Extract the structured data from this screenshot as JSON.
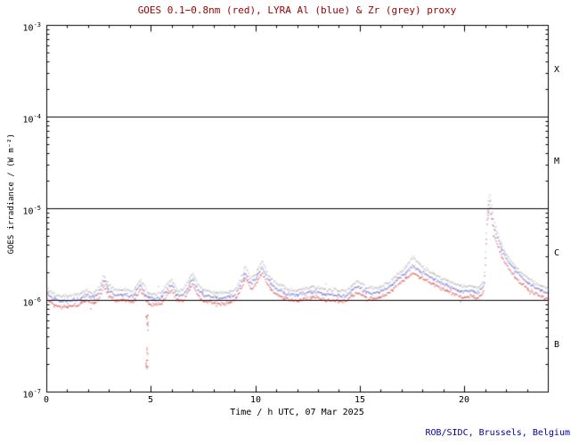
{
  "credit": "ROB/SIDC, Brussels, Belgium",
  "colors": {
    "title": "#990000",
    "credit": "#000099",
    "axis": "#000000"
  },
  "chart_data": {
    "type": "scatter",
    "title": "GOES 0.1−0.8nm (red), LYRA Al (blue) & Zr (grey) proxy",
    "xlabel": "Time / h UTC, 07 Mar 2025",
    "ylabel": "GOES irradiance / (W m⁻²)",
    "y_scale": "log",
    "x_range": [
      0,
      24
    ],
    "y_range_log10": [
      -7,
      -3
    ],
    "x_minor_step": 1,
    "x_ticks": [
      0,
      5,
      10,
      15,
      20
    ],
    "x_tick_labels": [
      "0",
      "5",
      "10",
      "15",
      "20"
    ],
    "y_ticks": [
      {
        "base": "10",
        "exp": "-3"
      },
      {
        "base": "10",
        "exp": "-4"
      },
      {
        "base": "10",
        "exp": "-5"
      },
      {
        "base": "10",
        "exp": "-6"
      },
      {
        "base": "10",
        "exp": "-7"
      }
    ],
    "class_lines_flux": [
      0.0001,
      1e-05,
      1e-06
    ],
    "annotations": [
      {
        "label": "X"
      },
      {
        "label": "M"
      },
      {
        "label": "C"
      },
      {
        "label": "B"
      }
    ],
    "x_keypoints": [
      0,
      0.3,
      0.7,
      1.2,
      1.6,
      1.9,
      2.2,
      2.5,
      2.7,
      2.95,
      3.3,
      3.7,
      4.1,
      4.45,
      4.6,
      4.8,
      5.1,
      5.5,
      5.8,
      5.95,
      6.2,
      6.5,
      6.85,
      7.0,
      7.2,
      7.5,
      8.0,
      8.5,
      9.0,
      9.3,
      9.5,
      9.75,
      10.0,
      10.3,
      10.55,
      10.9,
      11.4,
      11.9,
      12.4,
      12.8,
      13.3,
      13.8,
      14.3,
      14.8,
      15.0,
      15.3,
      15.8,
      16.3,
      16.8,
      17.2,
      17.5,
      17.9,
      18.4,
      18.9,
      19.4,
      19.9,
      20.3,
      20.6,
      20.9,
      21.05,
      21.2,
      21.4,
      21.7,
      22.1,
      22.6,
      23.1,
      23.6,
      24.0
    ],
    "series": [
      {
        "name": "GOES 0.1-0.8nm",
        "color": "#cc0000",
        "values": [
          1.05e-06,
          9e-07,
          8.5e-07,
          8.8e-07,
          9.2e-07,
          1e-06,
          9.3e-07,
          1.05e-06,
          1.45e-06,
          1.15e-06,
          1e-06,
          1.02e-06,
          9.5e-07,
          1.3e-06,
          1.15e-06,
          9.5e-07,
          9e-07,
          9.5e-07,
          1.2e-06,
          1.3e-06,
          1e-06,
          1e-06,
          1.4e-06,
          1.5e-06,
          1.15e-06,
          1e-06,
          9.5e-07,
          9.3e-07,
          1e-06,
          1.4e-06,
          1.8e-06,
          1.35e-06,
          1.55e-06,
          2.05e-06,
          1.5e-06,
          1.2e-06,
          1.05e-06,
          1e-06,
          1.05e-06,
          1.1e-06,
          1.02e-06,
          1e-06,
          9.8e-07,
          1.25e-06,
          1.2e-06,
          1.05e-06,
          1.05e-06,
          1.2e-06,
          1.5e-06,
          1.8e-06,
          2e-06,
          1.8e-06,
          1.55e-06,
          1.35e-06,
          1.2e-06,
          1.1e-06,
          1.12e-06,
          1.05e-06,
          1.25e-06,
          7.5e-06,
          1e-05,
          5e-06,
          3.2e-06,
          2.2e-06,
          1.6e-06,
          1.3e-06,
          1.12e-06,
          1.05e-06
        ]
      },
      {
        "name": "LYRA Al proxy",
        "color": "#3333bb",
        "values": [
          1.21e-06,
          1.04e-06,
          9.8e-07,
          1.01e-06,
          1.06e-06,
          1.15e-06,
          1.07e-06,
          1.21e-06,
          1.67e-06,
          1.32e-06,
          1.15e-06,
          1.17e-06,
          1.09e-06,
          1.5e-06,
          1.32e-06,
          1.09e-06,
          1.04e-06,
          1.09e-06,
          1.38e-06,
          1.5e-06,
          1.15e-06,
          1.15e-06,
          1.61e-06,
          1.73e-06,
          1.32e-06,
          1.15e-06,
          1.09e-06,
          1.07e-06,
          1.15e-06,
          1.61e-06,
          2.07e-06,
          1.55e-06,
          1.78e-06,
          2.36e-06,
          1.73e-06,
          1.38e-06,
          1.21e-06,
          1.15e-06,
          1.21e-06,
          1.27e-06,
          1.17e-06,
          1.15e-06,
          1.13e-06,
          1.44e-06,
          1.38e-06,
          1.21e-06,
          1.21e-06,
          1.38e-06,
          1.73e-06,
          2.07e-06,
          2.4e-06,
          2.07e-06,
          1.78e-06,
          1.55e-06,
          1.38e-06,
          1.27e-06,
          1.29e-06,
          1.21e-06,
          1.44e-06,
          8.6e-06,
          1.2e-05,
          6e-06,
          3.8e-06,
          2.6e-06,
          1.9e-06,
          1.5e-06,
          1.29e-06,
          1.21e-06
        ]
      },
      {
        "name": "LYRA Zr proxy",
        "color": "#999999",
        "values": [
          1.37e-06,
          1.17e-06,
          1.11e-06,
          1.14e-06,
          1.2e-06,
          1.3e-06,
          1.21e-06,
          1.37e-06,
          1.89e-06,
          1.5e-06,
          1.3e-06,
          1.33e-06,
          1.24e-06,
          1.69e-06,
          1.5e-06,
          1.24e-06,
          1.17e-06,
          1.24e-06,
          1.56e-06,
          1.69e-06,
          1.3e-06,
          1.3e-06,
          1.82e-06,
          1.95e-06,
          1.5e-06,
          1.3e-06,
          1.24e-06,
          1.21e-06,
          1.3e-06,
          1.82e-06,
          2.4e-06,
          1.76e-06,
          2.02e-06,
          2.7e-06,
          1.95e-06,
          1.56e-06,
          1.37e-06,
          1.3e-06,
          1.37e-06,
          1.43e-06,
          1.33e-06,
          1.3e-06,
          1.27e-06,
          1.63e-06,
          1.56e-06,
          1.37e-06,
          1.37e-06,
          1.56e-06,
          1.95e-06,
          2.4e-06,
          3e-06,
          2.4e-06,
          2.02e-06,
          1.76e-06,
          1.56e-06,
          1.43e-06,
          1.46e-06,
          1.37e-06,
          1.63e-06,
          1.05e-05,
          1.45e-05,
          7e-06,
          4.3e-06,
          2.9e-06,
          2.1e-06,
          1.7e-06,
          1.46e-06,
          1.37e-06
        ]
      }
    ],
    "dropout": {
      "series": "GOES 0.1-0.8nm",
      "x": 4.78,
      "flux_from": 7e-07,
      "flux_to": 1.8e-07,
      "points": 22
    }
  }
}
